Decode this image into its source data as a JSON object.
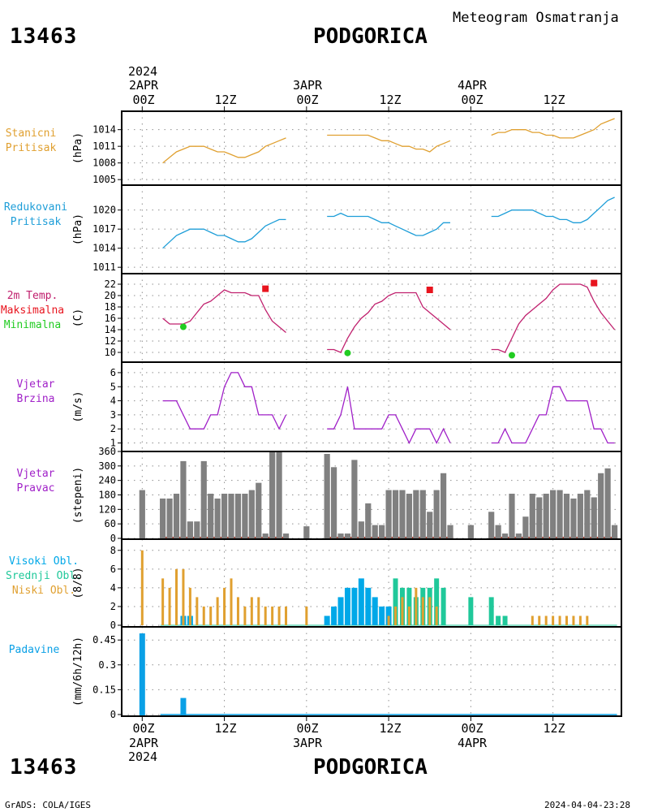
{
  "header": {
    "station_id": "13463",
    "station_name": "PODGORICA",
    "subtitle": "Meteogram Osmatranja"
  },
  "footer": {
    "left": "GrADS: COLA/IGES",
    "right": "2024-04-04-23:28"
  },
  "time_axis": {
    "top_year": "2024",
    "day_labels": [
      "2APR",
      "3APR",
      "4APR"
    ],
    "hour_labels": [
      "00Z",
      "12Z",
      "00Z",
      "12Z",
      "00Z",
      "12Z"
    ],
    "bottom_year": "2024",
    "hours_start": -3,
    "hours_end": 70
  },
  "colors": {
    "station_pressure": "#e0a030",
    "reduced_pressure": "#1e9ed8",
    "temperature_line": "#c0206e",
    "temp_max": "#e8141e",
    "temp_min": "#22cc22",
    "wind": "#a020c8",
    "direction_bar": "#808080",
    "direction_base": "#b44030",
    "high_cloud": "#00a8e8",
    "mid_cloud": "#20c89a",
    "low_cloud": "#e0a030",
    "precip": "#0aa0e6"
  },
  "chart_data": [
    {
      "type": "line",
      "id": "station_pressure",
      "labels": [
        "Stanicni",
        "Pritisak"
      ],
      "unit": "(hPa)",
      "ylim": [
        1004,
        1016
      ],
      "yticks": [
        1005,
        1008,
        1011,
        1014
      ],
      "series": [
        {
          "x": [
            3,
            4,
            5,
            6,
            7,
            8,
            9,
            10,
            11,
            12,
            13,
            14,
            15,
            16,
            17,
            18,
            19,
            20,
            21
          ],
          "y": [
            1008,
            1009,
            1010,
            1010.5,
            1011,
            1011,
            1011,
            1010.5,
            1010,
            1010,
            1009.5,
            1009,
            1009,
            1009.5,
            1010,
            1011,
            1011.5,
            1012,
            1012.5
          ]
        },
        {
          "x": [
            27,
            28,
            29,
            30,
            31,
            32,
            33,
            34,
            35,
            36,
            37,
            38,
            39,
            40,
            41,
            42,
            43,
            44,
            45
          ],
          "y": [
            1013,
            1013,
            1013,
            1013,
            1013,
            1013,
            1013,
            1012.5,
            1012,
            1012,
            1011.5,
            1011,
            1011,
            1010.5,
            1010.5,
            1010,
            1011,
            1011.5,
            1012
          ]
        },
        {
          "x": [
            51,
            52,
            53,
            54,
            55,
            56,
            57,
            58,
            59,
            60,
            61,
            62,
            63,
            64,
            65,
            66,
            67,
            68,
            69
          ],
          "y": [
            1013,
            1013.5,
            1013.5,
            1014,
            1014,
            1014,
            1013.5,
            1013.5,
            1013,
            1013,
            1012.5,
            1012.5,
            1012.5,
            1013,
            1013.5,
            1014,
            1015,
            1015.5,
            1016
          ]
        }
      ]
    },
    {
      "type": "line",
      "id": "reduced_pressure",
      "labels": [
        "Redukovani",
        "Pritisak"
      ],
      "unit": "(hPa)",
      "ylim": [
        1010,
        1022
      ],
      "yticks": [
        1011,
        1014,
        1017,
        1020
      ],
      "series": [
        {
          "x": [
            3,
            4,
            5,
            6,
            7,
            8,
            9,
            10,
            11,
            12,
            13,
            14,
            15,
            16,
            17,
            18,
            19,
            20,
            21
          ],
          "y": [
            1014,
            1015,
            1016,
            1016.5,
            1017,
            1017,
            1017,
            1016.5,
            1016,
            1016,
            1015.5,
            1015,
            1015,
            1015.5,
            1016.5,
            1017.5,
            1018,
            1018.5,
            1018.5
          ]
        },
        {
          "x": [
            27,
            28,
            29,
            30,
            31,
            32,
            33,
            34,
            35,
            36,
            37,
            38,
            39,
            40,
            41,
            42,
            43,
            44,
            45
          ],
          "y": [
            1019,
            1019,
            1019.5,
            1019,
            1019,
            1019,
            1019,
            1018.5,
            1018,
            1018,
            1017.5,
            1017,
            1016.5,
            1016,
            1016,
            1016.5,
            1017,
            1018,
            1018
          ]
        },
        {
          "x": [
            51,
            52,
            53,
            54,
            55,
            56,
            57,
            58,
            59,
            60,
            61,
            62,
            63,
            64,
            65,
            66,
            67,
            68,
            69
          ],
          "y": [
            1019,
            1019,
            1019.5,
            1020,
            1020,
            1020,
            1020,
            1019.5,
            1019,
            1019,
            1018.5,
            1018.5,
            1018,
            1018,
            1018.5,
            1019.5,
            1020.5,
            1021.5,
            1022
          ]
        }
      ]
    },
    {
      "type": "line",
      "id": "temperature",
      "labels": [
        "2m Temp.",
        "Maksimalna",
        "Minimalna"
      ],
      "unit": "(C)",
      "ylim": [
        9,
        23
      ],
      "yticks": [
        10,
        12,
        14,
        16,
        18,
        20,
        22
      ],
      "series": [
        {
          "x": [
            3,
            4,
            5,
            6,
            7,
            8,
            9,
            10,
            11,
            12,
            13,
            14,
            15,
            16,
            17,
            18,
            19,
            20,
            21
          ],
          "y": [
            16,
            15,
            15,
            15,
            15.5,
            17,
            18.5,
            19,
            20,
            21,
            20.5,
            20.5,
            20.5,
            20,
            20,
            17.5,
            15.5,
            14.5,
            13.5
          ]
        },
        {
          "x": [
            27,
            28,
            29,
            30,
            31,
            32,
            33,
            34,
            35,
            36,
            37,
            38,
            39,
            40,
            41,
            42,
            43,
            44,
            45
          ],
          "y": [
            10.5,
            10.5,
            10,
            12.5,
            14.5,
            16,
            17,
            18.5,
            19,
            20,
            20.5,
            20.5,
            20.5,
            20.5,
            18,
            17,
            16,
            15,
            14
          ]
        },
        {
          "x": [
            51,
            52,
            53,
            54,
            55,
            56,
            57,
            58,
            59,
            60,
            61,
            62,
            63,
            64,
            65,
            66,
            67,
            68,
            69
          ],
          "y": [
            10.5,
            10.5,
            10,
            12.5,
            15,
            16.5,
            17.5,
            18.5,
            19.5,
            21,
            22,
            22,
            22,
            22,
            21.5,
            19,
            17,
            15.5,
            14
          ]
        }
      ],
      "maxima": {
        "x": [
          18,
          42,
          66
        ],
        "y": [
          21.2,
          21,
          22.2
        ]
      },
      "minima": {
        "x": [
          6,
          30,
          54
        ],
        "y": [
          14.5,
          9.9,
          9.5
        ]
      }
    },
    {
      "type": "line",
      "id": "wind_speed",
      "labels": [
        "Vjetar",
        "Brzina"
      ],
      "unit": "(m/s)",
      "ylim": [
        0.8,
        6.4
      ],
      "yticks": [
        1,
        2,
        3,
        4,
        5,
        6
      ],
      "series": [
        {
          "x": [
            3,
            4,
            5,
            6,
            7,
            8,
            9,
            10,
            11,
            12,
            13,
            14,
            15,
            16,
            17,
            18,
            19,
            20,
            21
          ],
          "y": [
            4,
            4,
            4,
            3,
            2,
            2,
            2,
            3,
            3,
            5,
            6,
            6,
            5,
            5,
            3,
            3,
            3,
            2,
            3
          ]
        },
        {
          "x": [
            27,
            28,
            29,
            30,
            31,
            32,
            33,
            34,
            35,
            36,
            37,
            38,
            39,
            40,
            41,
            42,
            43,
            44,
            45
          ],
          "y": [
            2,
            2,
            3,
            5,
            2,
            2,
            2,
            2,
            2,
            3,
            3,
            2,
            1,
            2,
            2,
            2,
            1,
            2,
            1
          ]
        },
        {
          "x": [
            51,
            52,
            53,
            54,
            55,
            56,
            57,
            58,
            59,
            60,
            61,
            62,
            63,
            64,
            65,
            66,
            67,
            68,
            69
          ],
          "y": [
            1,
            1,
            2,
            1,
            1,
            1,
            2,
            3,
            3,
            5,
            5,
            4,
            4,
            4,
            4,
            2,
            2,
            1,
            1
          ]
        }
      ]
    },
    {
      "type": "bar",
      "id": "wind_direction",
      "labels": [
        "Vjetar",
        "Pravac"
      ],
      "unit": "(stepeni)",
      "ylim": [
        0,
        360
      ],
      "yticks": [
        0,
        60,
        120,
        180,
        240,
        300,
        360
      ],
      "x": [
        0,
        3,
        4,
        5,
        6,
        7,
        8,
        9,
        10,
        11,
        12,
        13,
        14,
        15,
        16,
        17,
        18,
        19,
        20,
        21,
        24,
        27,
        28,
        29,
        30,
        31,
        32,
        33,
        34,
        35,
        36,
        37,
        38,
        39,
        40,
        41,
        42,
        43,
        44,
        45,
        48,
        51,
        52,
        53,
        54,
        55,
        56,
        57,
        58,
        59,
        60,
        61,
        62,
        63,
        64,
        65,
        66,
        67,
        68,
        69
      ],
      "values": [
        200,
        165,
        165,
        185,
        320,
        70,
        70,
        320,
        185,
        165,
        185,
        185,
        185,
        185,
        200,
        230,
        20,
        360,
        360,
        20,
        50,
        350,
        295,
        20,
        20,
        325,
        70,
        145,
        55,
        55,
        200,
        200,
        200,
        185,
        200,
        200,
        110,
        200,
        270,
        55,
        55,
        110,
        55,
        20,
        185,
        20,
        90,
        185,
        170,
        185,
        200,
        200,
        185,
        165,
        185,
        200,
        170,
        270,
        290,
        55
      ],
      "base_line_ranges": [
        [
          3,
          21
        ],
        [
          27,
          45
        ],
        [
          51,
          69
        ]
      ]
    },
    {
      "type": "bar",
      "id": "cloud_cover",
      "labels": [
        "Visoki Obl.",
        "Srednji Obl.",
        "Niski Obl."
      ],
      "unit": "(8/8)",
      "ylim": [
        0,
        8.5
      ],
      "yticks": [
        0,
        2,
        4,
        6,
        8
      ],
      "series": [
        {
          "name": "Visoki Obl.",
          "x": [
            6,
            7,
            27,
            28,
            29,
            30,
            31,
            32,
            33,
            34,
            35,
            36
          ],
          "values": [
            1,
            1,
            1,
            2,
            3,
            4,
            4,
            5,
            4,
            3,
            2,
            2
          ]
        },
        {
          "name": "Srednji Obl.",
          "x": [
            37,
            38,
            39,
            40,
            41,
            42,
            43,
            44,
            48,
            51,
            52,
            53
          ],
          "values": [
            5,
            4,
            4,
            3,
            4,
            4,
            5,
            4,
            3,
            3,
            1,
            1
          ]
        },
        {
          "name": "Niski Obl.",
          "x": [
            0,
            3,
            4,
            5,
            6,
            7,
            8,
            9,
            10,
            11,
            12,
            13,
            14,
            15,
            16,
            17,
            18,
            19,
            20,
            21,
            24,
            36,
            37,
            38,
            39,
            40,
            41,
            42,
            43,
            57,
            58,
            59,
            60,
            61,
            62,
            63,
            64,
            65
          ],
          "values": [
            8,
            5,
            4,
            6,
            6,
            4,
            3,
            2,
            2,
            3,
            4,
            5,
            3,
            2,
            3,
            3,
            2,
            2,
            2,
            2,
            2,
            1,
            2,
            3,
            2,
            4,
            3,
            3,
            2,
            1,
            1,
            1,
            1,
            1,
            1,
            1,
            1,
            1
          ]
        }
      ]
    },
    {
      "type": "bar",
      "id": "precipitation",
      "labels": [
        "Padavine"
      ],
      "unit": "(mm/6h/12h)",
      "ylim": [
        -0.01,
        0.5
      ],
      "yticks": [
        "0",
        "0.15",
        "0.3",
        "0.45"
      ],
      "x": [
        0,
        6
      ],
      "values": [
        0.49,
        0.1
      ]
    }
  ]
}
